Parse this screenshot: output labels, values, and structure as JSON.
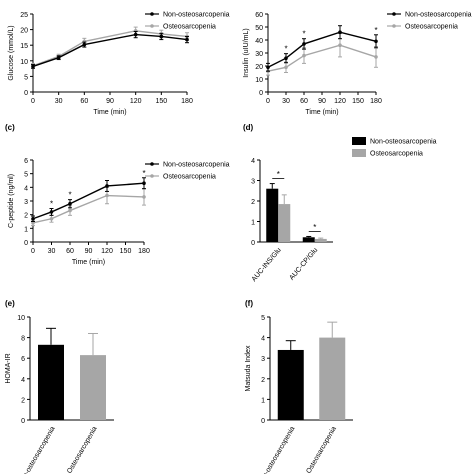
{
  "colors": {
    "non": "#000000",
    "osteo": "#a6a6a6",
    "axis": "#000000"
  },
  "chart_data": [
    {
      "panel": "a",
      "panel_label": "",
      "type": "line",
      "xlabel": "Time (min)",
      "ylabel": "Glucose (mmol/L)",
      "x": [
        0,
        30,
        60,
        120,
        150,
        180
      ],
      "xticks": [
        0,
        30,
        60,
        90,
        120,
        150,
        180
      ],
      "ylim": [
        0,
        25
      ],
      "yticks": [
        0,
        5,
        10,
        15,
        20,
        25
      ],
      "legend": "top-right",
      "series": [
        {
          "name": "Non-osteosarcopenia",
          "color": "#000000",
          "values": [
            8.2,
            11.0,
            15.2,
            18.4,
            17.8,
            16.8
          ],
          "err": [
            0.6,
            0.6,
            0.8,
            1.0,
            1.0,
            1.0
          ]
        },
        {
          "name": "Osteosarcopenia",
          "color": "#a6a6a6",
          "values": [
            8.4,
            11.4,
            16.2,
            19.6,
            18.6,
            17.8
          ],
          "err": [
            0.7,
            0.7,
            1.0,
            1.2,
            1.2,
            1.2
          ]
        }
      ],
      "stars_at": []
    },
    {
      "panel": "b",
      "panel_label": "",
      "type": "line",
      "xlabel": "Time (min)",
      "ylabel": "Insulin (uIU/mL)",
      "x": [
        0,
        30,
        60,
        120,
        180
      ],
      "xticks": [
        0,
        30,
        60,
        90,
        120,
        150,
        180
      ],
      "ylim": [
        0,
        60
      ],
      "yticks": [
        0,
        10,
        20,
        30,
        40,
        50,
        60
      ],
      "legend": "top-right",
      "series": [
        {
          "name": "Non-osteosarcopenia",
          "color": "#000000",
          "values": [
            19,
            26,
            37,
            46,
            39
          ],
          "err": [
            3,
            3.5,
            4,
            5,
            5
          ]
        },
        {
          "name": "Osteosarcopenia",
          "color": "#a6a6a6",
          "values": [
            16,
            19,
            28,
            36,
            27
          ],
          "err": [
            3,
            4,
            6,
            9,
            8
          ]
        }
      ],
      "stars_at": [
        30,
        60,
        180
      ],
      "star": "*"
    },
    {
      "panel": "c",
      "panel_label": "(c)",
      "type": "line",
      "xlabel": "Time (min)",
      "ylabel": "C-peptide (ng/ml)",
      "x": [
        0,
        30,
        60,
        120,
        180
      ],
      "xticks": [
        0,
        30,
        60,
        90,
        120,
        150,
        180
      ],
      "ylim": [
        0,
        6
      ],
      "yticks": [
        0,
        1,
        2,
        3,
        4,
        5,
        6
      ],
      "legend": "top-right",
      "series": [
        {
          "name": "Non-osteosarcopenia",
          "color": "#000000",
          "values": [
            1.7,
            2.2,
            2.8,
            4.1,
            4.3
          ],
          "err": [
            0.2,
            0.25,
            0.3,
            0.4,
            0.4
          ]
        },
        {
          "name": "Osteosarcopenia",
          "color": "#a6a6a6",
          "values": [
            1.4,
            1.7,
            2.3,
            3.4,
            3.3
          ],
          "err": [
            0.2,
            0.25,
            0.35,
            0.6,
            0.6
          ]
        }
      ],
      "stars_at": [
        30,
        60,
        180
      ],
      "star": "*"
    },
    {
      "panel": "d",
      "panel_label": "(d)",
      "type": "bar",
      "categories": [
        "AUC-INS/Glu",
        "AUC-CP/Glu"
      ],
      "ylim": [
        0,
        4
      ],
      "yticks": [
        0,
        1,
        2,
        3,
        4
      ],
      "legend": "top-right",
      "series": [
        {
          "name": "Non-osteosarcopenia",
          "color": "#000000",
          "values": [
            2.6,
            0.23
          ],
          "err": [
            0.25,
            0.04
          ]
        },
        {
          "name": "Osteosarcopenia",
          "color": "#a6a6a6",
          "values": [
            1.85,
            0.15
          ],
          "err": [
            0.45,
            0.04
          ]
        }
      ],
      "star": "*"
    },
    {
      "panel": "e",
      "panel_label": "(e)",
      "type": "bar",
      "ylabel": "HOMA-IR",
      "categories": [
        "Non-osteosarcopenia",
        "Osteosarcopenia"
      ],
      "ylim": [
        0,
        10
      ],
      "yticks": [
        0,
        2,
        4,
        6,
        8,
        10
      ],
      "values": [
        7.3,
        6.3
      ],
      "err": [
        1.6,
        2.1
      ],
      "colors": [
        "#000000",
        "#a6a6a6"
      ]
    },
    {
      "panel": "f",
      "panel_label": "(f)",
      "type": "bar",
      "ylabel": "Matsuda Index",
      "categories": [
        "Non-osteosarcopenia",
        "Osteosarcopenia"
      ],
      "ylim": [
        0,
        5
      ],
      "yticks": [
        0,
        1,
        2,
        3,
        4,
        5
      ],
      "values": [
        3.4,
        4.0
      ],
      "err": [
        0.45,
        0.75
      ],
      "colors": [
        "#000000",
        "#a6a6a6"
      ]
    }
  ]
}
